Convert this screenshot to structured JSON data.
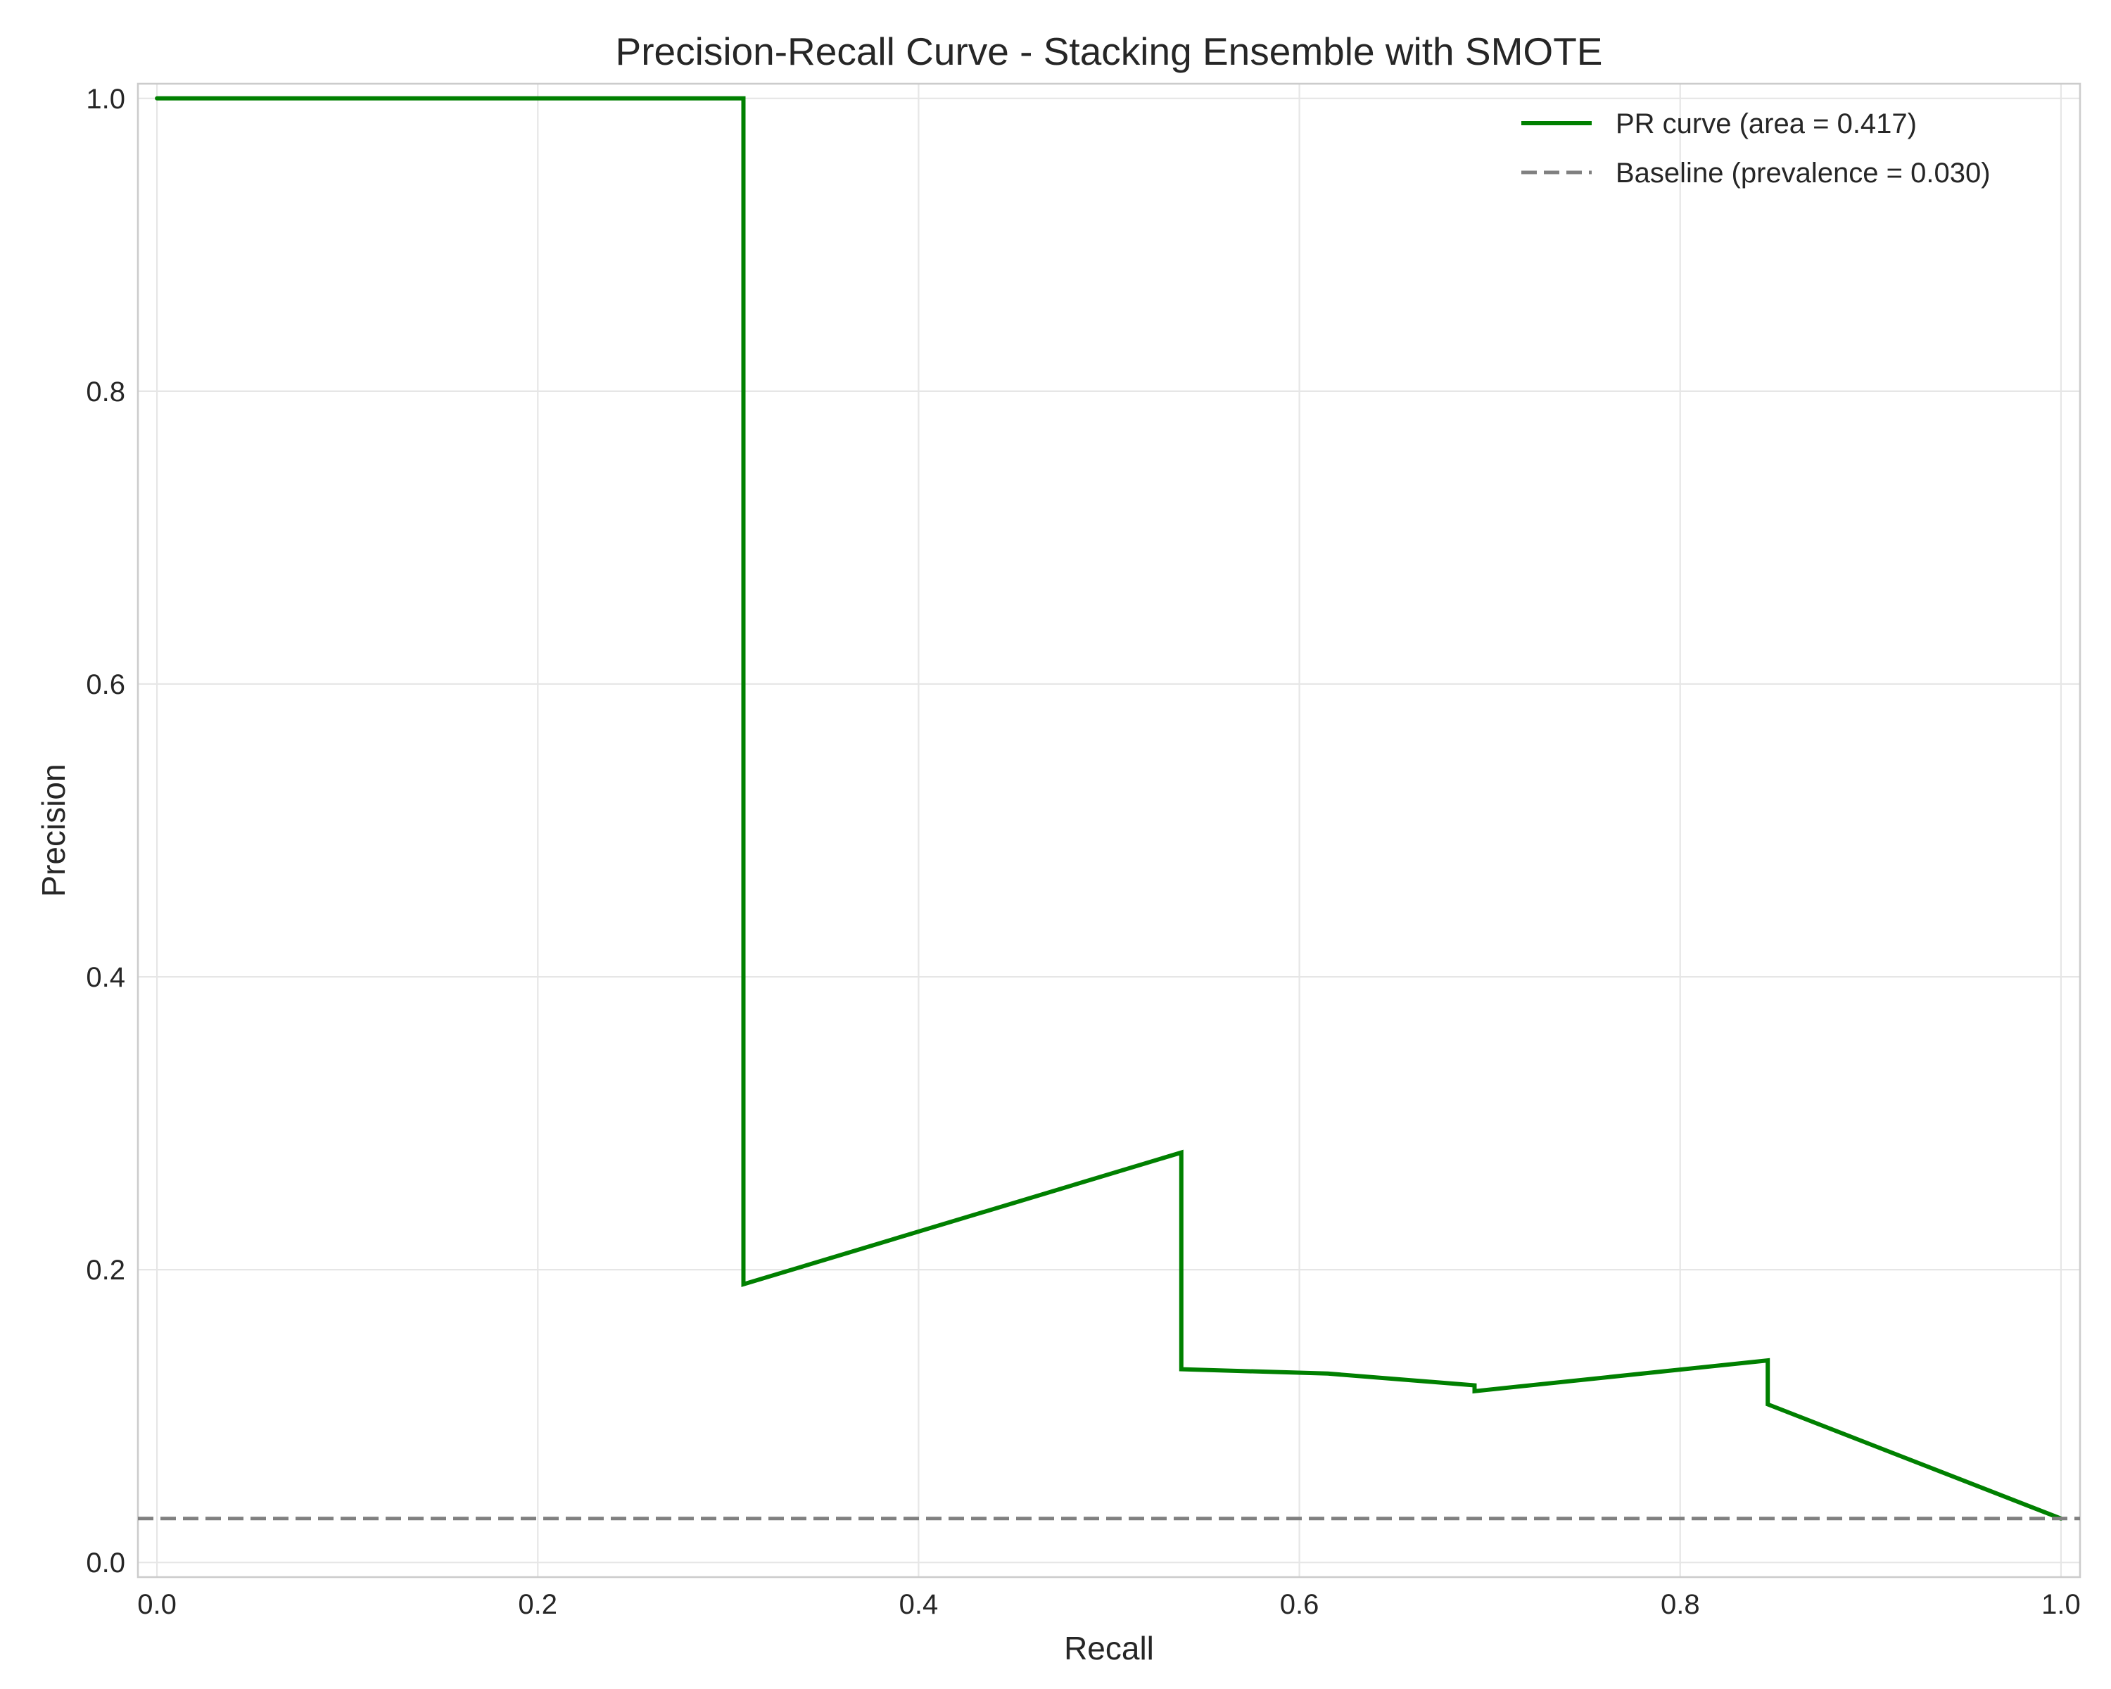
{
  "chart_data": {
    "type": "line",
    "title": "Precision-Recall Curve - Stacking Ensemble with SMOTE",
    "xlabel": "Recall",
    "ylabel": "Precision",
    "xlim": [
      -0.01,
      1.01
    ],
    "ylim": [
      -0.01,
      1.01
    ],
    "xticks": [
      "0.0",
      "0.2",
      "0.4",
      "0.6",
      "0.8",
      "1.0"
    ],
    "yticks": [
      "0.0",
      "0.2",
      "0.4",
      "0.6",
      "0.8",
      "1.0"
    ],
    "grid": true,
    "legend_position": "top-right",
    "series": [
      {
        "name": "PR curve (area = 0.417)",
        "color": "#008000",
        "style": "solid",
        "points": [
          [
            0.0,
            1.0
          ],
          [
            0.308,
            1.0
          ],
          [
            0.308,
            0.19
          ],
          [
            0.538,
            0.28
          ],
          [
            0.538,
            0.132
          ],
          [
            0.615,
            0.129
          ],
          [
            0.692,
            0.121
          ],
          [
            0.692,
            0.117
          ],
          [
            0.846,
            0.138
          ],
          [
            0.846,
            0.108
          ],
          [
            1.0,
            0.03
          ]
        ]
      },
      {
        "name": "Baseline (prevalence = 0.030)",
        "color": "#808080",
        "style": "dashed",
        "y": 0.03
      }
    ]
  }
}
